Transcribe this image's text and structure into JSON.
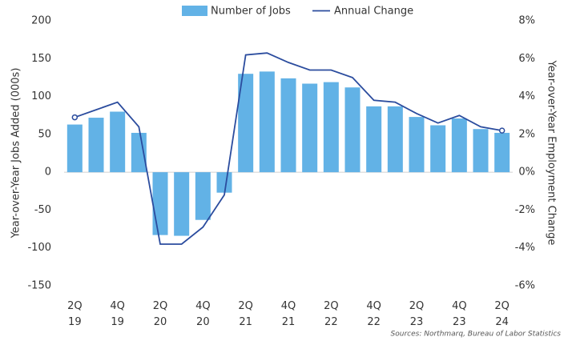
{
  "chart_data": {
    "type": "bar_line",
    "categories": [
      "2Q 19",
      null,
      "4Q 19",
      null,
      "2Q 20",
      null,
      "4Q 20",
      null,
      "2Q 21",
      null,
      "4Q 21",
      null,
      "2Q 22",
      null,
      "4Q 22",
      null,
      "2Q 23",
      null,
      "4Q 23",
      null,
      "2Q 24"
    ],
    "series": [
      {
        "name": "Number of Jobs",
        "color": "#62b2e6",
        "type": "bar",
        "values": [
          63,
          72,
          80,
          52,
          -83,
          -84,
          -63,
          -27,
          130,
          133,
          124,
          117,
          119,
          112,
          87,
          87,
          73,
          62,
          71,
          57,
          52
        ]
      },
      {
        "name": "Annual Change",
        "color": "#2b4c9e",
        "type": "line",
        "axis": "y2",
        "endpoint_markers": true,
        "values": [
          2.9,
          3.3,
          3.7,
          2.4,
          -3.8,
          -3.8,
          -2.9,
          -1.2,
          6.2,
          6.3,
          5.8,
          5.4,
          5.4,
          5.0,
          3.8,
          3.7,
          3.1,
          2.6,
          3.0,
          2.4,
          2.2
        ]
      }
    ],
    "ylabel": "Year-over-Year Jobs Added (000s)",
    "y2label": "Year-over-Year Employment Change",
    "ylim": [
      -150,
      200
    ],
    "yticks": [
      -150,
      -100,
      -50,
      0,
      50,
      100,
      150,
      200
    ],
    "y2lim": [
      -6,
      8
    ],
    "y2ticks": [
      {
        "value": -6,
        "label": "-6%"
      },
      {
        "value": -4,
        "label": "-4%"
      },
      {
        "value": -2,
        "label": "-2%"
      },
      {
        "value": 0,
        "label": "0%"
      },
      {
        "value": 2,
        "label": "2%"
      },
      {
        "value": 4,
        "label": "4%"
      },
      {
        "value": 6,
        "label": "6%"
      },
      {
        "value": 8,
        "label": "8%"
      }
    ],
    "source": "Sources: Northmarq, Bureau of Labor Statistics"
  }
}
